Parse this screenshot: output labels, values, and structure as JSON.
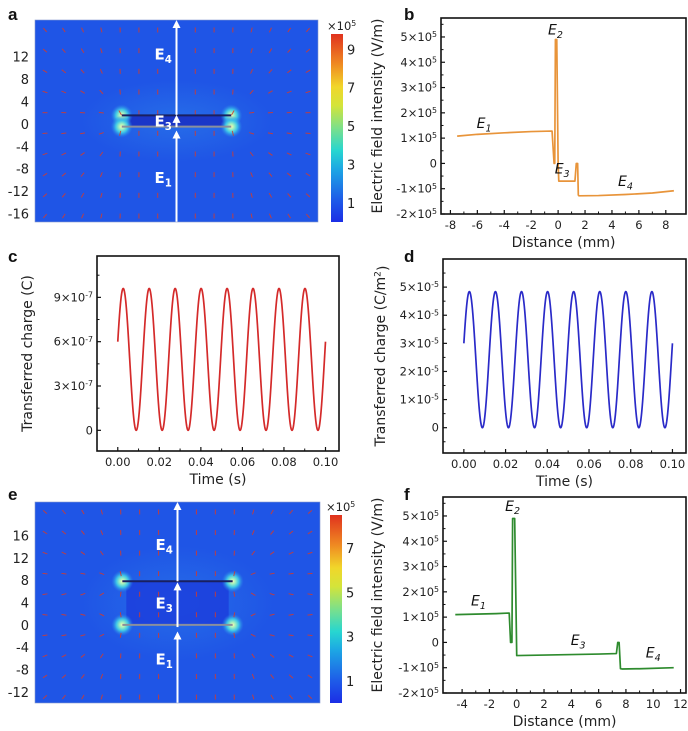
{
  "figure": {
    "panels": [
      "a",
      "b",
      "c",
      "d",
      "e",
      "f"
    ]
  },
  "chart_data": [
    {
      "panel": "a",
      "type": "heatmap",
      "title": "",
      "description": "Electric field distribution map with field arrows; single dielectric layer (thin slab) around y=0",
      "ylabel": "",
      "yticks": [
        12,
        8,
        4,
        0,
        -4,
        -8,
        -12,
        -16
      ],
      "ylim": [
        -17.5,
        18.5
      ],
      "colorbar": {
        "label": "×10⁵",
        "ticks": [
          1,
          3,
          5,
          7,
          9
        ],
        "range": [
          0,
          9.8
        ],
        "colormap": "jet"
      },
      "layers": [
        {
          "y": 1.5
        },
        {
          "y": -0.5
        }
      ],
      "plate_x_range": [
        -6,
        6
      ],
      "region_labels": [
        {
          "text": "E",
          "sub": "4",
          "y": 12.5
        },
        {
          "text": "E",
          "sub": "3",
          "y": 0.6
        },
        {
          "text": "E",
          "sub": "1",
          "y": -9.5
        }
      ],
      "arrow_segments": [
        [
          -17.5,
          -1.2
        ],
        [
          -0.6,
          1.6
        ],
        [
          1.6,
          18.5
        ]
      ]
    },
    {
      "panel": "b",
      "type": "line",
      "title": "",
      "xlabel": "Distance (mm)",
      "ylabel": "Electric field intensity (V/m)",
      "xlim": [
        -8.7,
        9.5
      ],
      "ylim": [
        -200000,
        575000
      ],
      "xticks": [
        -8,
        -6,
        -4,
        -2,
        0,
        2,
        4,
        6,
        8
      ],
      "yticks": [
        -200000,
        -100000,
        0,
        100000,
        200000,
        300000,
        400000,
        500000
      ],
      "ytick_labels": [
        "-2×10⁵",
        "-1×10⁵",
        "0",
        "1×10⁵",
        "2×10⁵",
        "3×10⁵",
        "4×10⁵",
        "5×10⁵"
      ],
      "color": "#e8943a",
      "series": [
        {
          "name": "E-field",
          "x": [
            -7.5,
            -6,
            -4,
            -2,
            -0.5,
            -0.45,
            -0.3,
            -0.25,
            -0.2,
            -0.1,
            0.0,
            0.05,
            0.1,
            1.2,
            1.25,
            1.35,
            1.45,
            1.5,
            1.55,
            3,
            5,
            7,
            8.6
          ],
          "y": [
            108000,
            115000,
            121000,
            126000,
            128000,
            128000,
            0,
            0,
            490000,
            490000,
            0,
            -70000,
            -70000,
            -70000,
            -70000,
            0,
            0,
            -125000,
            -128000,
            -127000,
            -123000,
            -117000,
            -108000
          ]
        }
      ],
      "annotations": [
        {
          "text": "E",
          "sub": "1",
          "x": -5.5,
          "y": 140000
        },
        {
          "text": "E",
          "sub": "2",
          "x": -0.2,
          "y": 510000
        },
        {
          "text": "E",
          "sub": "3",
          "x": 0.3,
          "y": -40000
        },
        {
          "text": "E",
          "sub": "4",
          "x": 5,
          "y": -90000
        }
      ]
    },
    {
      "panel": "c",
      "type": "line",
      "title": "",
      "xlabel": "Time (s)",
      "ylabel": "Transferred charge (C)",
      "xlim": [
        -0.01,
        0.1065
      ],
      "ylim": [
        -1.4e-07,
        1.18e-06
      ],
      "xticks": [
        0,
        0.02,
        0.04,
        0.06,
        0.08,
        0.1
      ],
      "xtick_labels": [
        "0.00",
        "0.02",
        "0.04",
        "0.06",
        "0.08",
        "0.10"
      ],
      "yticks": [
        0,
        3e-07,
        6e-07,
        9e-07
      ],
      "ytick_labels": [
        "0",
        "3×10⁻⁷",
        "6×10⁻⁷",
        "9×10⁻⁷"
      ],
      "color": "#d42a2a",
      "series": [
        {
          "name": "Q",
          "function": "sine",
          "amplitude": 4.8e-07,
          "offset": 4.8e-07,
          "frequency_hz": 80,
          "phase_start_value": 6e-07,
          "t_range": [
            0,
            0.1
          ],
          "peak": 9.6e-07,
          "min": 0
        }
      ]
    },
    {
      "panel": "d",
      "type": "line",
      "title": "",
      "xlabel": "Time (s)",
      "ylabel": "Transferred charge (C/m²)",
      "xlim": [
        -0.01,
        0.1065
      ],
      "ylim": [
        -9e-06,
        6e-05
      ],
      "xticks": [
        0,
        0.02,
        0.04,
        0.06,
        0.08,
        0.1
      ],
      "xtick_labels": [
        "0.00",
        "0.02",
        "0.04",
        "0.06",
        "0.08",
        "0.10"
      ],
      "yticks": [
        0,
        1e-05,
        2e-05,
        3e-05,
        4e-05,
        5e-05
      ],
      "ytick_labels": [
        "0",
        "1×10⁻⁵",
        "2×10⁻⁵",
        "3×10⁻⁵",
        "4×10⁻⁵",
        "5×10⁻⁵"
      ],
      "color": "#2a2ac8",
      "series": [
        {
          "name": "σ",
          "function": "sine",
          "amplitude": 2.42e-05,
          "offset": 2.42e-05,
          "frequency_hz": 80,
          "phase_start_value": 3e-05,
          "t_range": [
            0,
            0.1
          ],
          "peak": 4.84e-05,
          "min": 0
        }
      ]
    },
    {
      "panel": "e",
      "type": "heatmap",
      "title": "",
      "description": "Electric field distribution map with field arrows; two dielectric layers separated by air gap (0 to ~8)",
      "ylabel": "",
      "yticks": [
        16,
        12,
        8,
        4,
        0,
        -4,
        -8,
        -12
      ],
      "ylim": [
        -14,
        22
      ],
      "colorbar": {
        "label": "×10⁵",
        "ticks": [
          1,
          3,
          5,
          7
        ],
        "range": [
          0,
          8.5
        ],
        "colormap": "jet"
      },
      "layers": [
        {
          "y": 7.8
        },
        {
          "y": 0
        }
      ],
      "plate_x_range": [
        -6,
        6
      ],
      "region_labels": [
        {
          "text": "E",
          "sub": "4",
          "y": 14.5
        },
        {
          "text": "E",
          "sub": "3",
          "y": 4
        },
        {
          "text": "E",
          "sub": "1",
          "y": -6
        }
      ],
      "arrow_segments": [
        [
          -14,
          -1.2
        ],
        [
          -0.4,
          7.6
        ],
        [
          7.8,
          22
        ]
      ]
    },
    {
      "panel": "f",
      "type": "line",
      "title": "",
      "xlabel": "Distance (mm)",
      "ylabel": "Electric field intensity (V/m)",
      "xlim": [
        -5.4,
        12.4
      ],
      "ylim": [
        -200000,
        575000
      ],
      "xticks": [
        -4,
        -2,
        0,
        2,
        4,
        6,
        8,
        10,
        12
      ],
      "yticks": [
        -200000,
        -100000,
        0,
        100000,
        200000,
        300000,
        400000,
        500000
      ],
      "ytick_labels": [
        "-2×10⁵",
        "-1×10⁵",
        "0",
        "1×10⁵",
        "2×10⁵",
        "3×10⁵",
        "4×10⁵",
        "5×10⁵"
      ],
      "color": "#2e8b2e",
      "series": [
        {
          "name": "E-field",
          "x": [
            -4.5,
            -3,
            -1.5,
            -0.6,
            -0.55,
            -0.45,
            -0.35,
            -0.3,
            -0.15,
            0.0,
            2,
            4,
            6,
            7.3,
            7.4,
            7.5,
            7.6,
            7.7,
            9,
            11.5
          ],
          "y": [
            110000,
            112000,
            114000,
            116000,
            116000,
            0,
            0,
            490000,
            490000,
            -52000,
            -50000,
            -48000,
            -46000,
            -44000,
            0,
            0,
            -104000,
            -105000,
            -104000,
            -100000
          ]
        }
      ],
      "annotations": [
        {
          "text": "E",
          "sub": "1",
          "x": -2.8,
          "y": 145000
        },
        {
          "text": "E",
          "sub": "2",
          "x": -0.3,
          "y": 520000
        },
        {
          "text": "E",
          "sub": "3",
          "x": 4.5,
          "y": -10000
        },
        {
          "text": "E",
          "sub": "4",
          "x": 10,
          "y": -60000
        }
      ]
    }
  ]
}
